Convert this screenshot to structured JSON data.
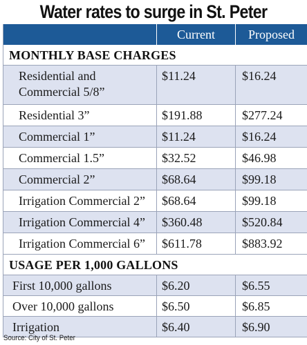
{
  "title": "Water rates to surge in St. Peter",
  "header": {
    "col1": "",
    "col2": "Current",
    "col3": "Proposed"
  },
  "sections": [
    {
      "heading": "MONTHLY BASE CHARGES",
      "rows": [
        {
          "label": "Residential and Commercial 5/8”",
          "current": "$11.24",
          "proposed": "$16.24"
        },
        {
          "label": "Residential 3”",
          "current": "$191.88",
          "proposed": "$277.24"
        },
        {
          "label": "Commercial 1”",
          "current": "$11.24",
          "proposed": "$16.24"
        },
        {
          "label": "Commercial 1.5”",
          "current": "$32.52",
          "proposed": "$46.98"
        },
        {
          "label": "Commercial 2”",
          "current": "$68.64",
          "proposed": "$99.18"
        },
        {
          "label": "Irrigation Commercial 2”",
          "current": "$68.64",
          "proposed": "$99.18"
        },
        {
          "label": "Irrigation Commercial 4”",
          "current": "$360.48",
          "proposed": "$520.84"
        },
        {
          "label": "Irrigation Commercial 6”",
          "current": "$611.78",
          "proposed": "$883.92"
        }
      ]
    },
    {
      "heading": "USAGE PER 1,000 GALLONS",
      "rows": [
        {
          "label": "First 10,000 gallons",
          "current": "$6.20",
          "proposed": "$6.55"
        },
        {
          "label": "Over 10,000 gallons",
          "current": "$6.50",
          "proposed": "$6.85"
        },
        {
          "label": "Irrigation",
          "current": "$6.40",
          "proposed": "$6.90"
        }
      ]
    }
  ],
  "source": "Source: City of St. Peter",
  "colors": {
    "header_bg": "#1d5a97",
    "alt_row_bg": "#dde2f0",
    "rule": "#9aa3b8"
  }
}
